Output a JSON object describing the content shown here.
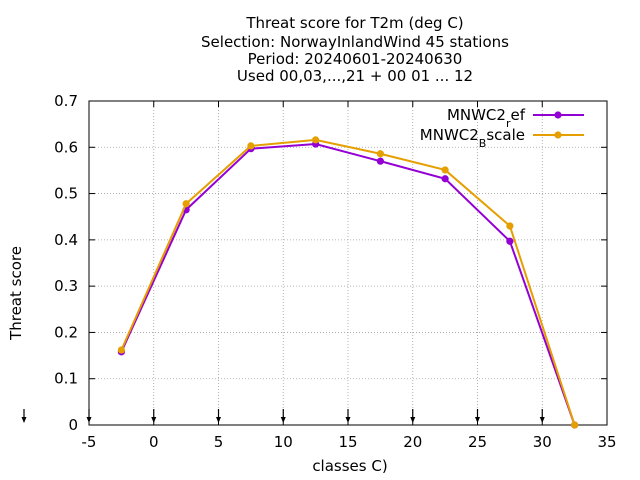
{
  "chart_data": {
    "type": "line",
    "title_lines": [
      "Threat score  for T2m (deg C)",
      "Selection: NorwayInlandWind     45 stations",
      "Period: 20240601-20240630",
      "Used 00,03,...,21 + 00 01 ... 12"
    ],
    "xlabel": "classes C)",
    "ylabel": "Threat score",
    "xlim": [
      -5,
      35
    ],
    "ylim": [
      0,
      0.7
    ],
    "xticks": [
      -5,
      0,
      5,
      10,
      15,
      20,
      25,
      30,
      35
    ],
    "yticks": [
      0,
      0.1,
      0.2,
      0.3,
      0.4,
      0.5,
      0.6,
      0.7
    ],
    "ytick_labels": [
      "0",
      "0.1",
      "0.2",
      "0.3",
      "0.4",
      "0.5",
      "0.6",
      "0.7"
    ],
    "grid": true,
    "legend_position": "top-right",
    "x": [
      -2.5,
      2.5,
      7.5,
      12.5,
      17.5,
      22.5,
      27.5,
      32.5
    ],
    "series": [
      {
        "name_main": "MNWC2",
        "name_sub": "r",
        "name_rest": "ef",
        "color": "#9400d3",
        "values": [
          0.158,
          0.465,
          0.597,
          0.607,
          0.57,
          0.532,
          0.397,
          0.0
        ]
      },
      {
        "name_main": "MNWC2",
        "name_sub": "B",
        "name_rest": "scale",
        "color": "#e69f00",
        "values": [
          0.162,
          0.478,
          0.603,
          0.616,
          0.586,
          0.551,
          0.43,
          0.0
        ]
      }
    ],
    "arrow_markers_x": [
      -5,
      0,
      5,
      10,
      15,
      20,
      25,
      30
    ],
    "left_arrow_marker": true
  }
}
